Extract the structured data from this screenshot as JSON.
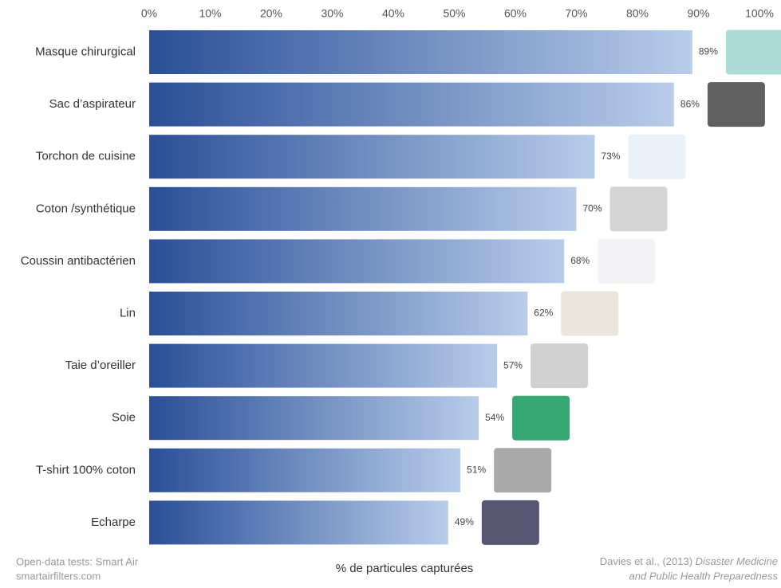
{
  "chart_data": {
    "type": "bar",
    "orientation": "horizontal",
    "categories": [
      "Masque chirurgical",
      "Sac d’aspirateur",
      "Torchon de cuisine",
      "Coton /synthétique",
      "Coussin antibactérien",
      "Lin",
      "Taie d’oreiller",
      "Soie",
      "T-shirt 100% coton",
      "Echarpe"
    ],
    "values": [
      89,
      86,
      73,
      70,
      68,
      62,
      57,
      54,
      51,
      49
    ],
    "value_labels": [
      "89%",
      "86%",
      "73%",
      "70%",
      "68%",
      "62%",
      "57%",
      "54%",
      "51%",
      "49%"
    ],
    "color": [
      "#2a4f97",
      "#b9cdea"
    ],
    "xlim": [
      0,
      100
    ],
    "xticks": [
      {
        "value": 0,
        "label": "0%"
      },
      {
        "value": 10,
        "label": "10%"
      },
      {
        "value": 20,
        "label": "20%"
      },
      {
        "value": 30,
        "label": "30%"
      },
      {
        "value": 40,
        "label": "40%"
      },
      {
        "value": 50,
        "label": "50%"
      },
      {
        "value": 60,
        "label": "60%"
      },
      {
        "value": 70,
        "label": "70%"
      },
      {
        "value": 80,
        "label": "80%"
      },
      {
        "value": 90,
        "label": "90%"
      },
      {
        "value": 100,
        "label": "100%"
      }
    ],
    "grid": false,
    "x_label": "% de particules capturées",
    "source_left": [
      "Open-data tests: Smart Air",
      "smartairfilters.com"
    ],
    "source_right": [
      "Davies et al., (2013) ",
      "Disaster Medicine",
      "and Public Health Preparedness"
    ]
  }
}
